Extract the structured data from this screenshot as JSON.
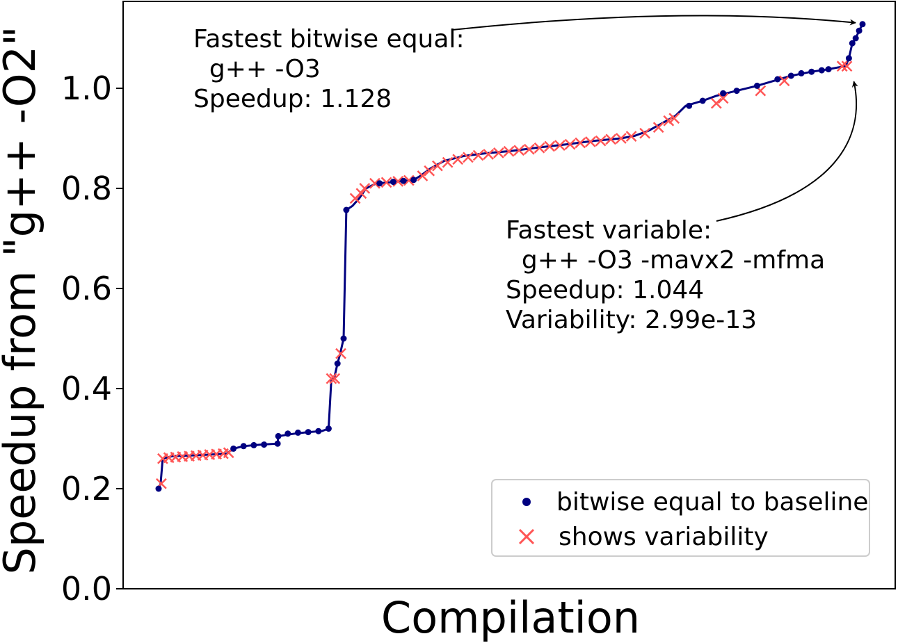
{
  "chart_data": {
    "type": "scatter",
    "xlabel": "Compilation",
    "ylabel": "Speedup from \"g++ -O2\"",
    "ylim": [
      0,
      1.16
    ],
    "yticks": [
      "0.0",
      "0.2",
      "0.4",
      "0.6",
      "0.8",
      "1.0"
    ],
    "grid": false,
    "legend_position": "bottom-right",
    "colors": {
      "bitwise": "#000080",
      "variable": "#ff5555",
      "line": "#000080"
    },
    "line_points": [
      [
        0,
        0.2
      ],
      [
        3,
        0.21
      ],
      [
        6,
        0.26
      ],
      [
        20,
        0.265
      ],
      [
        60,
        0.267
      ],
      [
        100,
        0.27
      ],
      [
        110,
        0.28
      ],
      [
        125,
        0.285
      ],
      [
        150,
        0.288
      ],
      [
        175,
        0.29
      ],
      [
        176,
        0.305
      ],
      [
        200,
        0.31
      ],
      [
        220,
        0.313
      ],
      [
        240,
        0.315
      ],
      [
        250,
        0.32
      ],
      [
        254,
        0.42
      ],
      [
        258,
        0.42
      ],
      [
        263,
        0.45
      ],
      [
        267,
        0.47
      ],
      [
        272,
        0.5
      ],
      [
        276,
        0.757
      ],
      [
        285,
        0.765
      ],
      [
        295,
        0.78
      ],
      [
        305,
        0.8
      ],
      [
        320,
        0.81
      ],
      [
        340,
        0.812
      ],
      [
        360,
        0.815
      ],
      [
        375,
        0.817
      ],
      [
        385,
        0.825
      ],
      [
        400,
        0.84
      ],
      [
        420,
        0.855
      ],
      [
        450,
        0.865
      ],
      [
        480,
        0.87
      ],
      [
        520,
        0.875
      ],
      [
        560,
        0.882
      ],
      [
        600,
        0.888
      ],
      [
        640,
        0.895
      ],
      [
        680,
        0.9
      ],
      [
        700,
        0.905
      ],
      [
        720,
        0.915
      ],
      [
        740,
        0.93
      ],
      [
        760,
        0.945
      ],
      [
        775,
        0.965
      ],
      [
        800,
        0.975
      ],
      [
        820,
        0.985
      ],
      [
        850,
        0.995
      ],
      [
        880,
        1.005
      ],
      [
        905,
        1.015
      ],
      [
        930,
        1.025
      ],
      [
        960,
        1.033
      ],
      [
        985,
        1.038
      ],
      [
        1000,
        1.042
      ],
      [
        1010,
        1.044
      ],
      [
        1015,
        1.06
      ],
      [
        1020,
        1.09
      ],
      [
        1025,
        1.1
      ],
      [
        1030,
        1.115
      ],
      [
        1035,
        1.128
      ]
    ],
    "series": [
      {
        "name": "bitwise equal to baseline",
        "marker": "dot",
        "points": [
          [
            0,
            0.2
          ],
          [
            110,
            0.28
          ],
          [
            125,
            0.285
          ],
          [
            140,
            0.287
          ],
          [
            155,
            0.288
          ],
          [
            175,
            0.29
          ],
          [
            176,
            0.305
          ],
          [
            190,
            0.31
          ],
          [
            205,
            0.312
          ],
          [
            220,
            0.313
          ],
          [
            235,
            0.315
          ],
          [
            250,
            0.32
          ],
          [
            263,
            0.45
          ],
          [
            272,
            0.5
          ],
          [
            276,
            0.757
          ],
          [
            325,
            0.81
          ],
          [
            345,
            0.813
          ],
          [
            360,
            0.815
          ],
          [
            375,
            0.817
          ],
          [
            780,
            0.965
          ],
          [
            800,
            0.975
          ],
          [
            830,
            0.99
          ],
          [
            850,
            0.995
          ],
          [
            880,
            1.005
          ],
          [
            910,
            1.018
          ],
          [
            930,
            1.025
          ],
          [
            945,
            1.03
          ],
          [
            960,
            1.033
          ],
          [
            975,
            1.036
          ],
          [
            985,
            1.038
          ],
          [
            1015,
            1.06
          ],
          [
            1020,
            1.09
          ],
          [
            1025,
            1.1
          ],
          [
            1030,
            1.115
          ],
          [
            1035,
            1.128
          ]
        ]
      },
      {
        "name": "shows variability",
        "marker": "x",
        "points": [
          [
            4,
            0.21
          ],
          [
            6,
            0.26
          ],
          [
            15,
            0.262
          ],
          [
            25,
            0.263
          ],
          [
            35,
            0.264
          ],
          [
            45,
            0.265
          ],
          [
            55,
            0.266
          ],
          [
            65,
            0.267
          ],
          [
            75,
            0.268
          ],
          [
            85,
            0.269
          ],
          [
            95,
            0.27
          ],
          [
            103,
            0.272
          ],
          [
            254,
            0.42
          ],
          [
            259,
            0.42
          ],
          [
            268,
            0.47
          ],
          [
            289,
            0.78
          ],
          [
            298,
            0.79
          ],
          [
            303,
            0.8
          ],
          [
            318,
            0.81
          ],
          [
            335,
            0.812
          ],
          [
            352,
            0.814
          ],
          [
            368,
            0.816
          ],
          [
            388,
            0.825
          ],
          [
            398,
            0.835
          ],
          [
            410,
            0.845
          ],
          [
            425,
            0.852
          ],
          [
            440,
            0.858
          ],
          [
            455,
            0.862
          ],
          [
            470,
            0.866
          ],
          [
            485,
            0.868
          ],
          [
            500,
            0.871
          ],
          [
            515,
            0.874
          ],
          [
            530,
            0.876
          ],
          [
            545,
            0.878
          ],
          [
            560,
            0.881
          ],
          [
            575,
            0.884
          ],
          [
            590,
            0.886
          ],
          [
            605,
            0.888
          ],
          [
            620,
            0.891
          ],
          [
            635,
            0.893
          ],
          [
            650,
            0.895
          ],
          [
            665,
            0.898
          ],
          [
            680,
            0.9
          ],
          [
            695,
            0.904
          ],
          [
            715,
            0.91
          ],
          [
            735,
            0.922
          ],
          [
            750,
            0.935
          ],
          [
            758,
            0.94
          ],
          [
            820,
            0.97
          ],
          [
            830,
            0.98
          ],
          [
            885,
            0.995
          ],
          [
            920,
            1.015
          ],
          [
            1005,
            1.044
          ],
          [
            1012,
            1.044
          ]
        ]
      }
    ],
    "annotations": [
      {
        "lines": [
          "Fastest bitwise equal:",
          "  g++ -O3",
          "Speedup: 1.128"
        ],
        "target": [
          1035,
          1.128
        ]
      },
      {
        "lines": [
          "Fastest variable:",
          "  g++ -O3 -mavx2 -mfma",
          "Speedup: 1.044",
          "Variability: 2.99e-13"
        ],
        "target": [
          1010,
          1.044
        ]
      }
    ]
  }
}
